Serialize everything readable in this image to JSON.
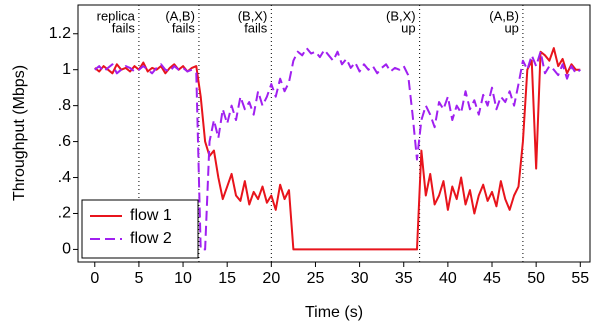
{
  "chart_data": {
    "type": "line",
    "xlabel": "Time (s)",
    "ylabel": "Throughput (Mbps)",
    "xlim": [
      -1.9,
      56.1
    ],
    "ylim": [
      -0.07,
      1.36
    ],
    "xticks": [
      0,
      5,
      10,
      15,
      20,
      25,
      30,
      35,
      40,
      45,
      50,
      55
    ],
    "yticks": [
      0,
      {
        "value": 0.2,
        "label": ".2"
      },
      {
        "value": 0.4,
        "label": ".4"
      },
      {
        "value": 0.6,
        "label": ".6"
      },
      {
        "value": 0.8,
        "label": ".8"
      },
      1,
      1.2
    ],
    "legend": "lower left",
    "markers": [
      {
        "x": 5,
        "label": [
          "replica",
          "fails"
        ]
      },
      {
        "x": 11.8,
        "label": [
          "(A,B)",
          "fails"
        ]
      },
      {
        "x": 20,
        "label": [
          "(B,X)",
          "fails"
        ]
      },
      {
        "x": 36.8,
        "label": [
          "(B,X)",
          "up"
        ]
      },
      {
        "x": 48.5,
        "label": [
          "(A,B)",
          "up"
        ]
      }
    ],
    "x": [
      0,
      0.5,
      1,
      1.5,
      2,
      2.5,
      3,
      3.5,
      4,
      4.5,
      5,
      5.5,
      6,
      6.5,
      7,
      7.5,
      8,
      8.5,
      9,
      9.5,
      10,
      10.5,
      11,
      11.5,
      12,
      12.5,
      13,
      13.5,
      14,
      14.5,
      15,
      15.5,
      16,
      16.5,
      17,
      17.5,
      18,
      18.5,
      19,
      19.5,
      20,
      20.5,
      21,
      21.5,
      22,
      22.5,
      23,
      23.5,
      24,
      24.5,
      25,
      25.5,
      26,
      26.5,
      27,
      27.5,
      28,
      28.5,
      29,
      29.5,
      30,
      30.5,
      31,
      31.5,
      32,
      32.5,
      33,
      33.5,
      34,
      34.5,
      35,
      35.5,
      36,
      36.5,
      37,
      37.5,
      38,
      38.5,
      39,
      39.5,
      40,
      40.5,
      41,
      41.5,
      42,
      42.5,
      43,
      43.5,
      44,
      44.5,
      45,
      45.5,
      46,
      46.5,
      47,
      47.5,
      48,
      48.5,
      49,
      49.5,
      50,
      50.5,
      51,
      51.5,
      52,
      52.5,
      53,
      53.5,
      54,
      54.5,
      55
    ],
    "series": [
      {
        "name": "flow 1",
        "color": "#e8141c",
        "style": "solid",
        "values": [
          1.01,
          0.99,
          1.02,
          1.0,
          0.98,
          1.03,
          1.0,
          1.01,
          0.99,
          1.02,
          1.0,
          1.04,
          0.99,
          1.01,
          1.0,
          1.02,
          0.98,
          1.01,
          1.03,
          1.0,
          1.02,
          0.99,
          1.01,
          1.02,
          0.85,
          0.6,
          0.52,
          0.55,
          0.4,
          0.28,
          0.35,
          0.42,
          0.3,
          0.27,
          0.38,
          0.25,
          0.32,
          0.28,
          0.35,
          0.26,
          0.3,
          0.22,
          0.36,
          0.28,
          0.33,
          0,
          0,
          0,
          0,
          0,
          0,
          0,
          0,
          0,
          0,
          0,
          0,
          0,
          0,
          0,
          0,
          0,
          0,
          0,
          0,
          0,
          0,
          0,
          0,
          0,
          0,
          0,
          0,
          0,
          0.55,
          0.3,
          0.42,
          0.25,
          0.3,
          0.38,
          0.22,
          0.35,
          0.28,
          0.4,
          0.25,
          0.33,
          0.2,
          0.3,
          0.36,
          0.27,
          0.32,
          0.24,
          0.38,
          0.28,
          0.22,
          0.3,
          0.35,
          0.6,
          1.0,
          1.05,
          0.45,
          1.1,
          1.08,
          1.05,
          1.12,
          1.02,
          1.06,
          0.98,
          1.03,
          1.0,
          1.0
        ]
      },
      {
        "name": "flow 2",
        "color": "#a020f0",
        "style": "dashed",
        "values": [
          1.0,
          1.02,
          0.99,
          1.01,
          1.03,
          0.98,
          1.0,
          1.02,
          1.01,
          0.99,
          1.0,
          1.02,
          1.0,
          0.98,
          1.01,
          1.03,
          1.0,
          0.99,
          1.02,
          1.0,
          1.01,
          0.99,
          1.0,
          0.98,
          0,
          0,
          0.6,
          0.72,
          0.62,
          0.78,
          0.7,
          0.8,
          0.72,
          0.85,
          0.78,
          0.82,
          0.75,
          0.88,
          0.8,
          0.85,
          0.92,
          0.85,
          0.95,
          0.88,
          0.93,
          1.05,
          1.1,
          1.08,
          1.12,
          1.09,
          1.1,
          1.07,
          1.11,
          1.08,
          1.05,
          1.1,
          1.03,
          1.06,
          1.01,
          1.04,
          0.99,
          1.03,
          1.0,
          1.02,
          0.98,
          1.01,
          1.03,
          0.99,
          1.01,
          1.0,
          1.02,
          0.97,
          0.75,
          0.5,
          0.72,
          0.8,
          0.75,
          0.68,
          0.82,
          0.78,
          0.85,
          0.72,
          0.8,
          0.76,
          0.88,
          0.78,
          0.83,
          0.75,
          0.86,
          0.8,
          0.9,
          0.78,
          0.85,
          0.82,
          0.88,
          0.8,
          0.92,
          1.05,
          1.0,
          1.08,
          1.02,
          1.1,
          0.98,
          1.02,
          1.0,
          0.97,
          1.03,
          0.95,
          1.02,
          0.98,
          1.0
        ]
      }
    ]
  }
}
